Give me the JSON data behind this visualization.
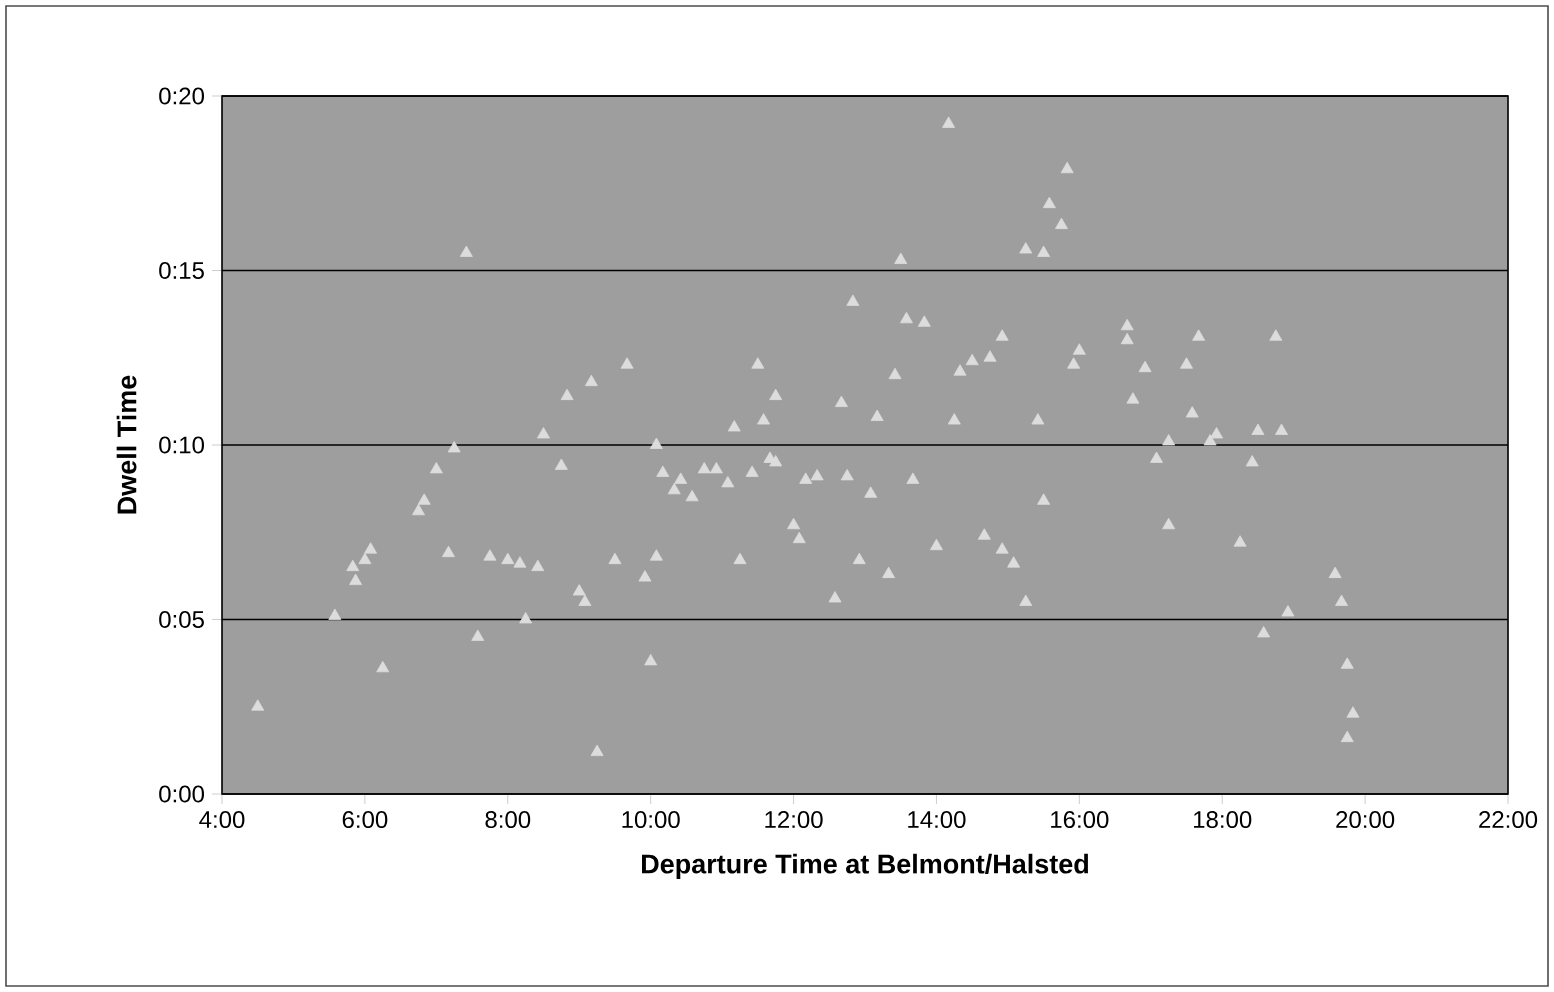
{
  "chart_data": {
    "type": "scatter",
    "xlabel": "Departure Time at Belmont/Halsted",
    "ylabel": "Dwell Time",
    "x": [
      4.5,
      5.58,
      5.83,
      5.87,
      6.0,
      6.08,
      6.25,
      6.75,
      6.83,
      7.0,
      7.17,
      7.25,
      7.42,
      7.58,
      7.75,
      8.0,
      8.17,
      8.42,
      8.25,
      8.5,
      8.75,
      8.83,
      9.0,
      9.08,
      9.17,
      9.25,
      9.5,
      9.67,
      9.92,
      10.0,
      10.08,
      10.08,
      10.17,
      10.33,
      10.42,
      10.58,
      10.75,
      10.92,
      11.08,
      11.17,
      11.25,
      11.42,
      11.5,
      11.58,
      11.67,
      11.75,
      11.75,
      12.0,
      12.08,
      12.17,
      12.33,
      12.58,
      12.67,
      12.75,
      12.83,
      12.92,
      13.08,
      13.17,
      13.33,
      13.42,
      13.5,
      13.58,
      13.67,
      13.83,
      14.0,
      14.17,
      14.25,
      14.33,
      14.5,
      14.67,
      14.75,
      14.92,
      14.92,
      15.08,
      15.25,
      15.25,
      15.42,
      15.5,
      15.5,
      15.58,
      15.75,
      15.83,
      15.92,
      16.0,
      16.67,
      16.67,
      16.75,
      16.92,
      17.08,
      17.25,
      17.25,
      17.5,
      17.58,
      17.67,
      17.83,
      17.92,
      18.25,
      18.42,
      18.58,
      18.5,
      18.75,
      18.83,
      18.92,
      19.58,
      19.67,
      19.75,
      19.75,
      19.83
    ],
    "values": [
      2.5,
      5.1,
      6.5,
      6.1,
      6.7,
      7.0,
      3.6,
      8.1,
      8.4,
      9.3,
      6.9,
      9.9,
      15.5,
      4.5,
      6.8,
      6.7,
      6.6,
      6.5,
      5.0,
      10.3,
      9.4,
      11.4,
      5.8,
      5.5,
      11.8,
      1.2,
      6.7,
      12.3,
      6.2,
      3.8,
      6.8,
      10.0,
      9.2,
      8.7,
      9.0,
      8.5,
      9.3,
      9.3,
      8.9,
      10.5,
      6.7,
      9.2,
      12.3,
      10.7,
      9.6,
      11.4,
      9.5,
      7.7,
      7.3,
      9.0,
      9.1,
      5.6,
      11.2,
      9.1,
      14.1,
      6.7,
      8.6,
      10.8,
      6.3,
      12.0,
      15.3,
      13.6,
      9.0,
      13.5,
      7.1,
      19.2,
      10.7,
      12.1,
      12.4,
      7.4,
      12.5,
      13.1,
      7.0,
      6.6,
      5.5,
      15.6,
      10.7,
      8.4,
      15.5,
      16.9,
      16.3,
      17.9,
      12.3,
      12.7,
      13.4,
      13.0,
      11.3,
      12.2,
      9.6,
      7.7,
      10.1,
      12.3,
      10.9,
      13.1,
      10.1,
      10.3,
      7.2,
      9.5,
      4.6,
      10.4,
      13.1,
      10.4,
      5.2,
      6.3,
      5.5,
      3.7,
      1.6,
      2.3
    ],
    "color": "#dcdcdc",
    "marker": "triangle",
    "grid": "y",
    "xlim": [
      4,
      22
    ],
    "ylim": [
      0,
      20
    ],
    "xticks": [
      {
        "value": 4,
        "label": "4:00"
      },
      {
        "value": 6,
        "label": "6:00"
      },
      {
        "value": 8,
        "label": "8:00"
      },
      {
        "value": 10,
        "label": "10:00"
      },
      {
        "value": 12,
        "label": "12:00"
      },
      {
        "value": 14,
        "label": "14:00"
      },
      {
        "value": 16,
        "label": "16:00"
      },
      {
        "value": 18,
        "label": "18:00"
      },
      {
        "value": 20,
        "label": "20:00"
      },
      {
        "value": 22,
        "label": "22:00"
      }
    ],
    "yticks": [
      {
        "value": 0,
        "label": "0:00"
      },
      {
        "value": 5,
        "label": "0:05"
      },
      {
        "value": 10,
        "label": "0:10"
      },
      {
        "value": 15,
        "label": "0:15"
      },
      {
        "value": 20,
        "label": "0:20"
      }
    ]
  }
}
